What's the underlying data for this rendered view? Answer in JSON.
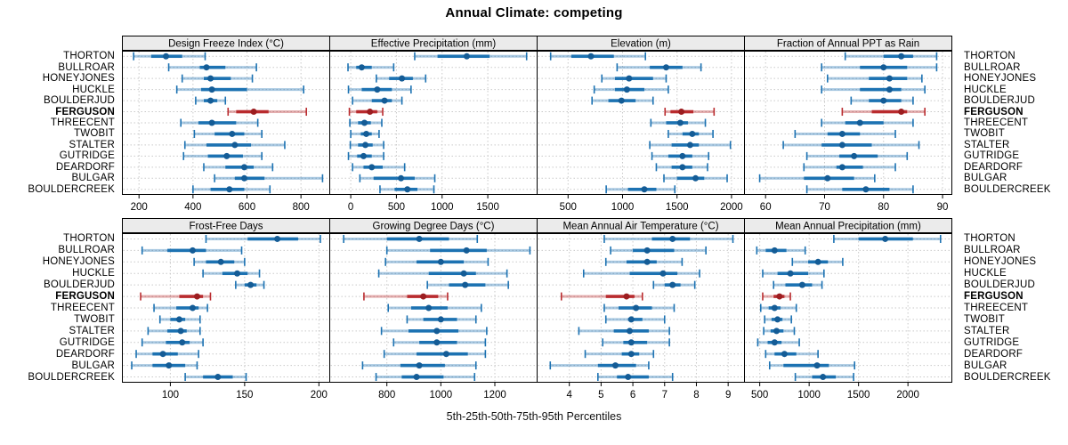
{
  "title": "Annual Climate: competing",
  "caption": "5th-25th-50th-75th-95th Percentiles",
  "colors": {
    "site_band": "#1c72b2",
    "site_dot": "#145c96",
    "highlight_band": "#b92b2e",
    "highlight_dot": "#9c1d20",
    "band_light_alpha": 0.38,
    "gridline": "#c9c9c9",
    "strip_bg": "#ebebeb",
    "panel_border": "#000000"
  },
  "chart_data": {
    "type": "dotplot-interval",
    "percentiles": [
      5,
      25,
      50,
      75,
      95
    ],
    "highlight_site": "FERGUSON",
    "legend_position": "none",
    "grid": "dotted",
    "sites": [
      "THORTON",
      "BULLROAR",
      "HONEYJONES",
      "HUCKLE",
      "BOULDERJUD",
      "FERGUSON",
      "THREECENT",
      "TWOBIT",
      "STALTER",
      "GUTRIDGE",
      "DEARDORF",
      "BULGAR",
      "BOULDERCREEK"
    ],
    "panels": [
      {
        "title": "Design Freeze Index (°C)",
        "row": 0,
        "col": 0,
        "xlim": [
          140,
          905
        ],
        "ticks": [
          200,
          400,
          600,
          800
        ],
        "series": [
          [
            180,
            245,
            300,
            360,
            445
          ],
          [
            310,
            425,
            450,
            520,
            635
          ],
          [
            360,
            440,
            465,
            540,
            620
          ],
          [
            340,
            430,
            470,
            600,
            810
          ],
          [
            410,
            440,
            465,
            490,
            520
          ],
          [
            530,
            560,
            625,
            680,
            820
          ],
          [
            355,
            420,
            470,
            560,
            640
          ],
          [
            405,
            480,
            545,
            590,
            655
          ],
          [
            370,
            450,
            555,
            615,
            740
          ],
          [
            365,
            455,
            525,
            585,
            655
          ],
          [
            440,
            520,
            590,
            625,
            695
          ],
          [
            480,
            555,
            590,
            665,
            880
          ],
          [
            400,
            465,
            535,
            590,
            685
          ]
        ]
      },
      {
        "title": "Effective Precipitation (mm)",
        "row": 0,
        "col": 1,
        "xlim": [
          -225,
          2035
        ],
        "ticks": [
          0,
          500,
          1000,
          1500
        ],
        "series": [
          [
            700,
            950,
            1270,
            1520,
            1925
          ],
          [
            -30,
            60,
            120,
            230,
            470
          ],
          [
            280,
            420,
            560,
            680,
            820
          ],
          [
            -25,
            120,
            290,
            450,
            660
          ],
          [
            20,
            230,
            370,
            450,
            560
          ],
          [
            -15,
            60,
            210,
            290,
            350
          ],
          [
            -10,
            80,
            150,
            220,
            340
          ],
          [
            0,
            110,
            170,
            230,
            310
          ],
          [
            -5,
            80,
            160,
            240,
            360
          ],
          [
            -25,
            70,
            140,
            230,
            360
          ],
          [
            20,
            140,
            230,
            350,
            590
          ],
          [
            100,
            250,
            550,
            700,
            920
          ],
          [
            320,
            480,
            620,
            730,
            910
          ]
        ]
      },
      {
        "title": "Elevation (m)",
        "row": 0,
        "col": 2,
        "xlim": [
          220,
          2115
        ],
        "ticks": [
          500,
          1000,
          1500,
          2000
        ],
        "series": [
          [
            340,
            530,
            710,
            920,
            1210
          ],
          [
            950,
            1250,
            1400,
            1550,
            1720
          ],
          [
            810,
            930,
            1060,
            1280,
            1400
          ],
          [
            740,
            930,
            1040,
            1200,
            1420
          ],
          [
            720,
            870,
            990,
            1120,
            1280
          ],
          [
            1390,
            1440,
            1540,
            1650,
            1840
          ],
          [
            1260,
            1400,
            1530,
            1600,
            1760
          ],
          [
            1420,
            1550,
            1640,
            1700,
            1830
          ],
          [
            1250,
            1450,
            1620,
            1700,
            1990
          ],
          [
            1270,
            1420,
            1550,
            1640,
            1790
          ],
          [
            1310,
            1450,
            1550,
            1640,
            1780
          ],
          [
            1380,
            1500,
            1670,
            1750,
            1960
          ],
          [
            850,
            1050,
            1200,
            1310,
            1480
          ]
        ]
      },
      {
        "title": "Fraction of Annual PPT as Rain",
        "row": 0,
        "col": 3,
        "xlim": [
          56.5,
          91.5
        ],
        "ticks": [
          60,
          70,
          80,
          90
        ],
        "series": [
          [
            73.5,
            80,
            83,
            85,
            89
          ],
          [
            69.5,
            76,
            80,
            84,
            89
          ],
          [
            70.5,
            77.5,
            81,
            84,
            86.5
          ],
          [
            69.5,
            76,
            81,
            83,
            87
          ],
          [
            74.5,
            77.5,
            80,
            83,
            85
          ],
          [
            73,
            78,
            83,
            84,
            87
          ],
          [
            69.5,
            73.5,
            76,
            80,
            85
          ],
          [
            65,
            70.5,
            73,
            76,
            82
          ],
          [
            63,
            69.5,
            73,
            78,
            86
          ],
          [
            67,
            72.5,
            75,
            79,
            84
          ],
          [
            66.5,
            72,
            73,
            76.5,
            82
          ],
          [
            59,
            66.5,
            70.5,
            75,
            78.5
          ],
          [
            67,
            73,
            77,
            81,
            85
          ]
        ]
      },
      {
        "title": "Frost-Free Days",
        "row": 1,
        "col": 0,
        "xlim": [
          68,
          207
        ],
        "ticks": [
          100,
          150,
          200
        ],
        "series": [
          [
            124,
            152,
            172,
            186,
            201
          ],
          [
            81,
            98,
            115,
            124,
            148
          ],
          [
            116,
            124,
            134,
            143,
            150
          ],
          [
            122,
            135,
            145,
            152,
            160
          ],
          [
            144,
            150,
            154,
            158,
            163
          ],
          [
            80,
            106,
            118,
            122,
            127
          ],
          [
            89,
            104,
            115,
            119,
            125
          ],
          [
            93,
            100,
            106,
            110,
            120
          ],
          [
            85,
            98,
            107,
            111,
            120
          ],
          [
            81,
            97,
            108,
            113,
            122
          ],
          [
            77,
            88,
            95,
            105,
            119
          ],
          [
            74,
            88,
            99,
            110,
            118
          ],
          [
            110,
            122,
            132,
            142,
            151
          ]
        ]
      },
      {
        "title": "Growing Degree Days (°C)",
        "row": 1,
        "col": 1,
        "xlim": [
          590,
          1355
        ],
        "ticks": [
          800,
          1000,
          1200
        ],
        "series": [
          [
            640,
            800,
            920,
            1030,
            1135
          ],
          [
            800,
            960,
            1095,
            1170,
            1330
          ],
          [
            795,
            910,
            1000,
            1085,
            1175
          ],
          [
            770,
            955,
            1085,
            1130,
            1245
          ],
          [
            950,
            1030,
            1090,
            1165,
            1250
          ],
          [
            715,
            875,
            935,
            990,
            1025
          ],
          [
            805,
            890,
            955,
            1025,
            1150
          ],
          [
            875,
            935,
            1000,
            1060,
            1130
          ],
          [
            780,
            880,
            985,
            1065,
            1170
          ],
          [
            825,
            920,
            985,
            1060,
            1165
          ],
          [
            790,
            910,
            1020,
            1100,
            1165
          ],
          [
            710,
            850,
            920,
            1015,
            1130
          ],
          [
            760,
            855,
            910,
            1010,
            1125
          ]
        ]
      },
      {
        "title": "Mean Annual Air Temperature (°C)",
        "row": 1,
        "col": 2,
        "xlim": [
          3.0,
          9.5
        ],
        "ticks": [
          4,
          5,
          6,
          7,
          8,
          9
        ],
        "series": [
          [
            5.1,
            6.6,
            7.25,
            7.8,
            9.15
          ],
          [
            5.3,
            6.0,
            6.45,
            7.3,
            8.3
          ],
          [
            5.15,
            5.8,
            6.45,
            6.75,
            7.55
          ],
          [
            4.45,
            5.9,
            6.95,
            7.4,
            8.1
          ],
          [
            6.65,
            7.0,
            7.25,
            7.5,
            7.95
          ],
          [
            3.75,
            5.15,
            5.8,
            6.05,
            6.3
          ],
          [
            5.1,
            5.55,
            6.1,
            6.6,
            7.3
          ],
          [
            5.15,
            5.85,
            5.95,
            6.3,
            7.0
          ],
          [
            4.3,
            5.4,
            5.9,
            6.5,
            7.15
          ],
          [
            5.05,
            5.7,
            5.95,
            6.45,
            7.15
          ],
          [
            4.5,
            5.65,
            5.95,
            6.2,
            6.65
          ],
          [
            3.4,
            4.9,
            5.45,
            6.1,
            6.5
          ],
          [
            4.9,
            5.5,
            5.85,
            6.5,
            7.25
          ]
        ]
      },
      {
        "title": "Mean Annual Precipitation (mm)",
        "row": 1,
        "col": 3,
        "xlim": [
          350,
          2440
        ],
        "ticks": [
          500,
          1000,
          1500,
          2000
        ],
        "series": [
          [
            1250,
            1500,
            1770,
            2050,
            2330
          ],
          [
            470,
            560,
            650,
            770,
            960
          ],
          [
            830,
            990,
            1090,
            1190,
            1340
          ],
          [
            530,
            680,
            810,
            990,
            1150
          ],
          [
            640,
            760,
            930,
            1030,
            1130
          ],
          [
            530,
            640,
            700,
            750,
            810
          ],
          [
            510,
            590,
            650,
            710,
            870
          ],
          [
            550,
            620,
            680,
            730,
            820
          ],
          [
            540,
            610,
            670,
            740,
            850
          ],
          [
            480,
            580,
            650,
            720,
            900
          ],
          [
            560,
            650,
            750,
            870,
            1090
          ],
          [
            600,
            740,
            1080,
            1200,
            1460
          ],
          [
            860,
            1030,
            1140,
            1270,
            1450
          ]
        ]
      }
    ]
  }
}
